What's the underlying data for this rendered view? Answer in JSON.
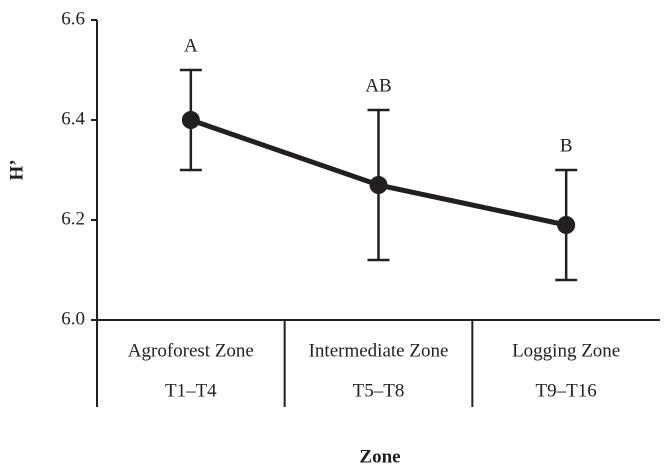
{
  "chart_data": {
    "type": "line",
    "x_label": "Zone",
    "y_label": "H’",
    "categories": [
      "Agroforest Zone",
      "Intermediate Zone",
      "Logging Zone"
    ],
    "transects": [
      "T1–T4",
      "T5–T8",
      "T9–T16"
    ],
    "values": [
      6.4,
      6.27,
      6.19
    ],
    "errors": [
      0.1,
      0.15,
      0.11
    ],
    "annotations": [
      "A",
      "AB",
      "B"
    ],
    "color": "#231f20",
    "ylim": [
      6.0,
      6.6
    ],
    "yticks": [
      {
        "value": 6,
        "label": "6.0"
      },
      6.2,
      6.4,
      6.6
    ]
  }
}
